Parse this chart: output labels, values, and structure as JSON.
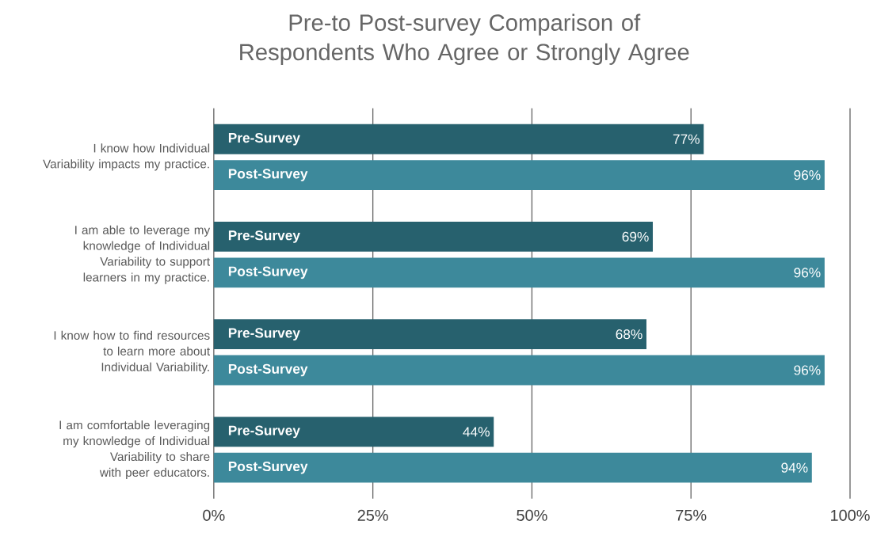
{
  "chart_data": {
    "type": "bar",
    "orientation": "horizontal",
    "title": "Pre-to Post-survey Comparison of Respondents Who Agree or Strongly Agree",
    "categories": [
      "I know how Individual Variability impacts my practice.",
      "I am able to leverage my knowledge of Individual Variability to support learners in my practice.",
      "I know how to find resources to learn more about Individual Variability.",
      "I am comfortable leveraging my knowledge of Individual Variability to share with peer educators."
    ],
    "series": [
      {
        "name": "Pre-Survey",
        "color": "#27616e",
        "values": [
          77,
          69,
          68,
          44
        ],
        "value_labels": [
          "77%",
          "69%",
          "68%",
          "44%"
        ]
      },
      {
        "name": "Post-Survey",
        "color": "#3d899b",
        "values": [
          96,
          96,
          96,
          94
        ],
        "value_labels": [
          "96%",
          "96%",
          "96%",
          "94%"
        ]
      }
    ],
    "xlim": [
      0,
      100
    ],
    "xticks": [
      {
        "value": 0,
        "label": "0%"
      },
      {
        "value": 25,
        "label": "25%"
      },
      {
        "value": 50,
        "label": "50%"
      },
      {
        "value": 75,
        "label": "75%"
      },
      {
        "value": 100,
        "label": "100%"
      }
    ],
    "grid": "x",
    "legend": false
  }
}
